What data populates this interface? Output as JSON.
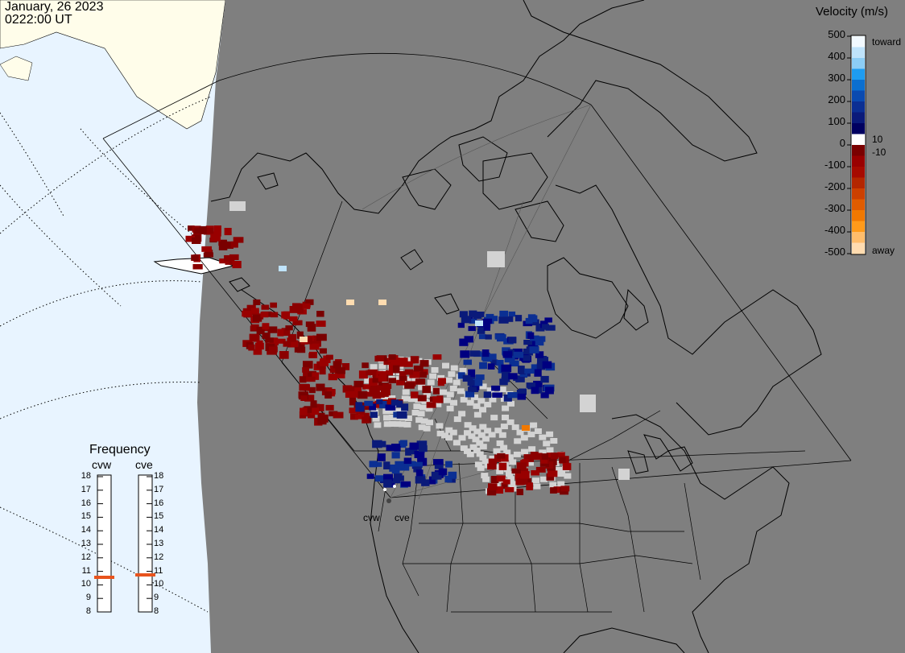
{
  "header": {
    "date": "January, 26 2023",
    "time": "0222:00 UT"
  },
  "colorbar": {
    "title": "Velocity (m/s)",
    "ticks": [
      "500",
      "400",
      "300",
      "200",
      "100",
      "0",
      "-100",
      "-200",
      "-300",
      "-400",
      "-500"
    ],
    "side_labels": {
      "toward": "toward",
      "ten": "10",
      "minus_ten": "-10",
      "away": "away"
    },
    "colors": [
      "#f2f9ff",
      "#bfe3fb",
      "#8ccdf5",
      "#1e9cf0",
      "#0b6fd0",
      "#0a4ab0",
      "#0b2f93",
      "#0a1a7a",
      "#000060",
      "#ffffff",
      "#7a0000",
      "#990000",
      "#a60a00",
      "#b32600",
      "#cc4000",
      "#e05c00",
      "#f07800",
      "#ff9a1a",
      "#ffbd6b",
      "#ffdcb0"
    ]
  },
  "frequency": {
    "title": "Frequency",
    "channels": [
      "cvw",
      "cve"
    ],
    "scale": [
      "18",
      "17",
      "16",
      "15",
      "14",
      "13",
      "12",
      "11",
      "10",
      "9",
      "8"
    ],
    "values_mhz": [
      10.5,
      10.7
    ]
  },
  "sites": [
    "cvw",
    "cve"
  ],
  "map_colors": {
    "ocean": "#e8f4ff",
    "night_land": "#7f7f7f",
    "day_land": "#fffdea",
    "ground_scatter": "#d3d3d3"
  }
}
